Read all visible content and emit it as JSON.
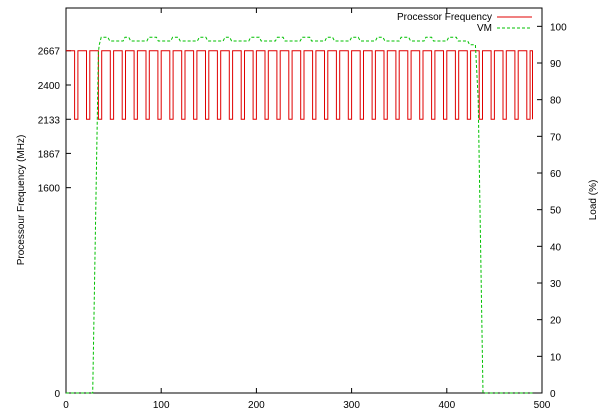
{
  "chart_data": {
    "type": "line",
    "title": "",
    "xlabel": "",
    "ylabel_left": "Processour Frequency (MHz)",
    "ylabel_right": "Load (%)",
    "xlim": [
      0,
      500
    ],
    "ylim_left": [
      0,
      3000
    ],
    "ylim_right": [
      0,
      105
    ],
    "x_ticks": [
      "0",
      "100",
      "200",
      "300",
      "400",
      "500"
    ],
    "left_ticks": [
      {
        "label": "0",
        "value": 0
      },
      {
        "label": "1600",
        "value": 1600
      },
      {
        "label": "1867",
        "value": 1867
      },
      {
        "label": "2133",
        "value": 2133
      },
      {
        "label": "2400",
        "value": 2400
      },
      {
        "label": "2667",
        "value": 2667
      }
    ],
    "right_ticks": [
      "0",
      "10",
      "20",
      "30",
      "40",
      "50",
      "60",
      "70",
      "80",
      "90",
      "100"
    ],
    "grid": false,
    "legend_position": "top-right",
    "series": [
      {
        "name": "Processor Frequency",
        "axis": "left",
        "color": "#e00000",
        "style": "solid",
        "pattern": {
          "x_start": 0,
          "x_end": 490,
          "period": 12.5,
          "high": 2667,
          "low": 2133,
          "high_fraction": 0.72
        }
      },
      {
        "name": "VM",
        "axis": "right",
        "color": "#00c000",
        "style": "dashed",
        "points": [
          [
            0,
            0
          ],
          [
            28,
            0
          ],
          [
            34,
            93
          ],
          [
            35,
            95
          ],
          [
            37,
            97
          ],
          [
            44,
            97
          ],
          [
            46,
            96
          ],
          [
            60,
            96
          ],
          [
            62,
            97
          ],
          [
            66,
            97
          ],
          [
            68,
            96
          ],
          [
            85,
            96
          ],
          [
            87,
            97
          ],
          [
            95,
            97
          ],
          [
            97,
            96
          ],
          [
            110,
            96
          ],
          [
            112,
            97
          ],
          [
            118,
            97
          ],
          [
            120,
            96
          ],
          [
            138,
            96
          ],
          [
            140,
            97
          ],
          [
            147,
            97
          ],
          [
            149,
            96
          ],
          [
            165,
            96
          ],
          [
            167,
            97
          ],
          [
            172,
            97
          ],
          [
            174,
            96
          ],
          [
            192,
            96
          ],
          [
            194,
            97
          ],
          [
            203,
            97
          ],
          [
            205,
            96
          ],
          [
            220,
            96
          ],
          [
            222,
            97
          ],
          [
            228,
            97
          ],
          [
            230,
            96
          ],
          [
            246,
            96
          ],
          [
            248,
            97
          ],
          [
            256,
            97
          ],
          [
            258,
            96
          ],
          [
            272,
            96
          ],
          [
            274,
            97
          ],
          [
            280,
            97
          ],
          [
            282,
            96
          ],
          [
            298,
            96
          ],
          [
            300,
            97
          ],
          [
            307,
            97
          ],
          [
            309,
            96
          ],
          [
            325,
            96
          ],
          [
            327,
            97
          ],
          [
            333,
            97
          ],
          [
            335,
            96
          ],
          [
            350,
            96
          ],
          [
            352,
            97
          ],
          [
            360,
            97
          ],
          [
            362,
            96
          ],
          [
            376,
            96
          ],
          [
            378,
            97
          ],
          [
            384,
            97
          ],
          [
            386,
            96
          ],
          [
            400,
            96
          ],
          [
            402,
            97
          ],
          [
            410,
            97
          ],
          [
            412,
            96
          ],
          [
            422,
            96
          ],
          [
            424,
            95
          ],
          [
            430,
            95
          ],
          [
            433,
            80
          ],
          [
            438,
            0
          ],
          [
            490,
            0
          ]
        ]
      }
    ]
  }
}
